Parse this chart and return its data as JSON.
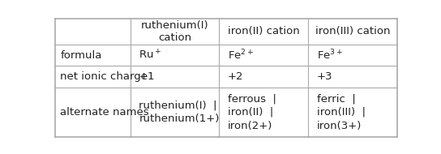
{
  "col_headers": [
    "ruthenium(I)\ncation",
    "iron(II) cation",
    "iron(III) cation"
  ],
  "row_headers": [
    "formula",
    "net ionic charge",
    "alternate names"
  ],
  "formula_cells": [
    "Ru$^+$",
    "Fe$^{2+}$",
    "Fe$^{3+}$"
  ],
  "charge_cells": [
    "+1",
    "+2",
    "+3"
  ],
  "alt_names": [
    [
      "ruthenium(I)  |",
      "ruthenium(1+)"
    ],
    [
      "ferrous  |",
      "iron(II)  |",
      "iron(2+)"
    ],
    [
      "ferric  |",
      "iron(III)  |",
      "iron(3+)"
    ]
  ],
  "bg_color": "#ffffff",
  "line_color": "#aaaaaa",
  "text_color": "#222222",
  "cell_fontsize": 9.5,
  "fig_width": 5.44,
  "fig_height": 1.9
}
